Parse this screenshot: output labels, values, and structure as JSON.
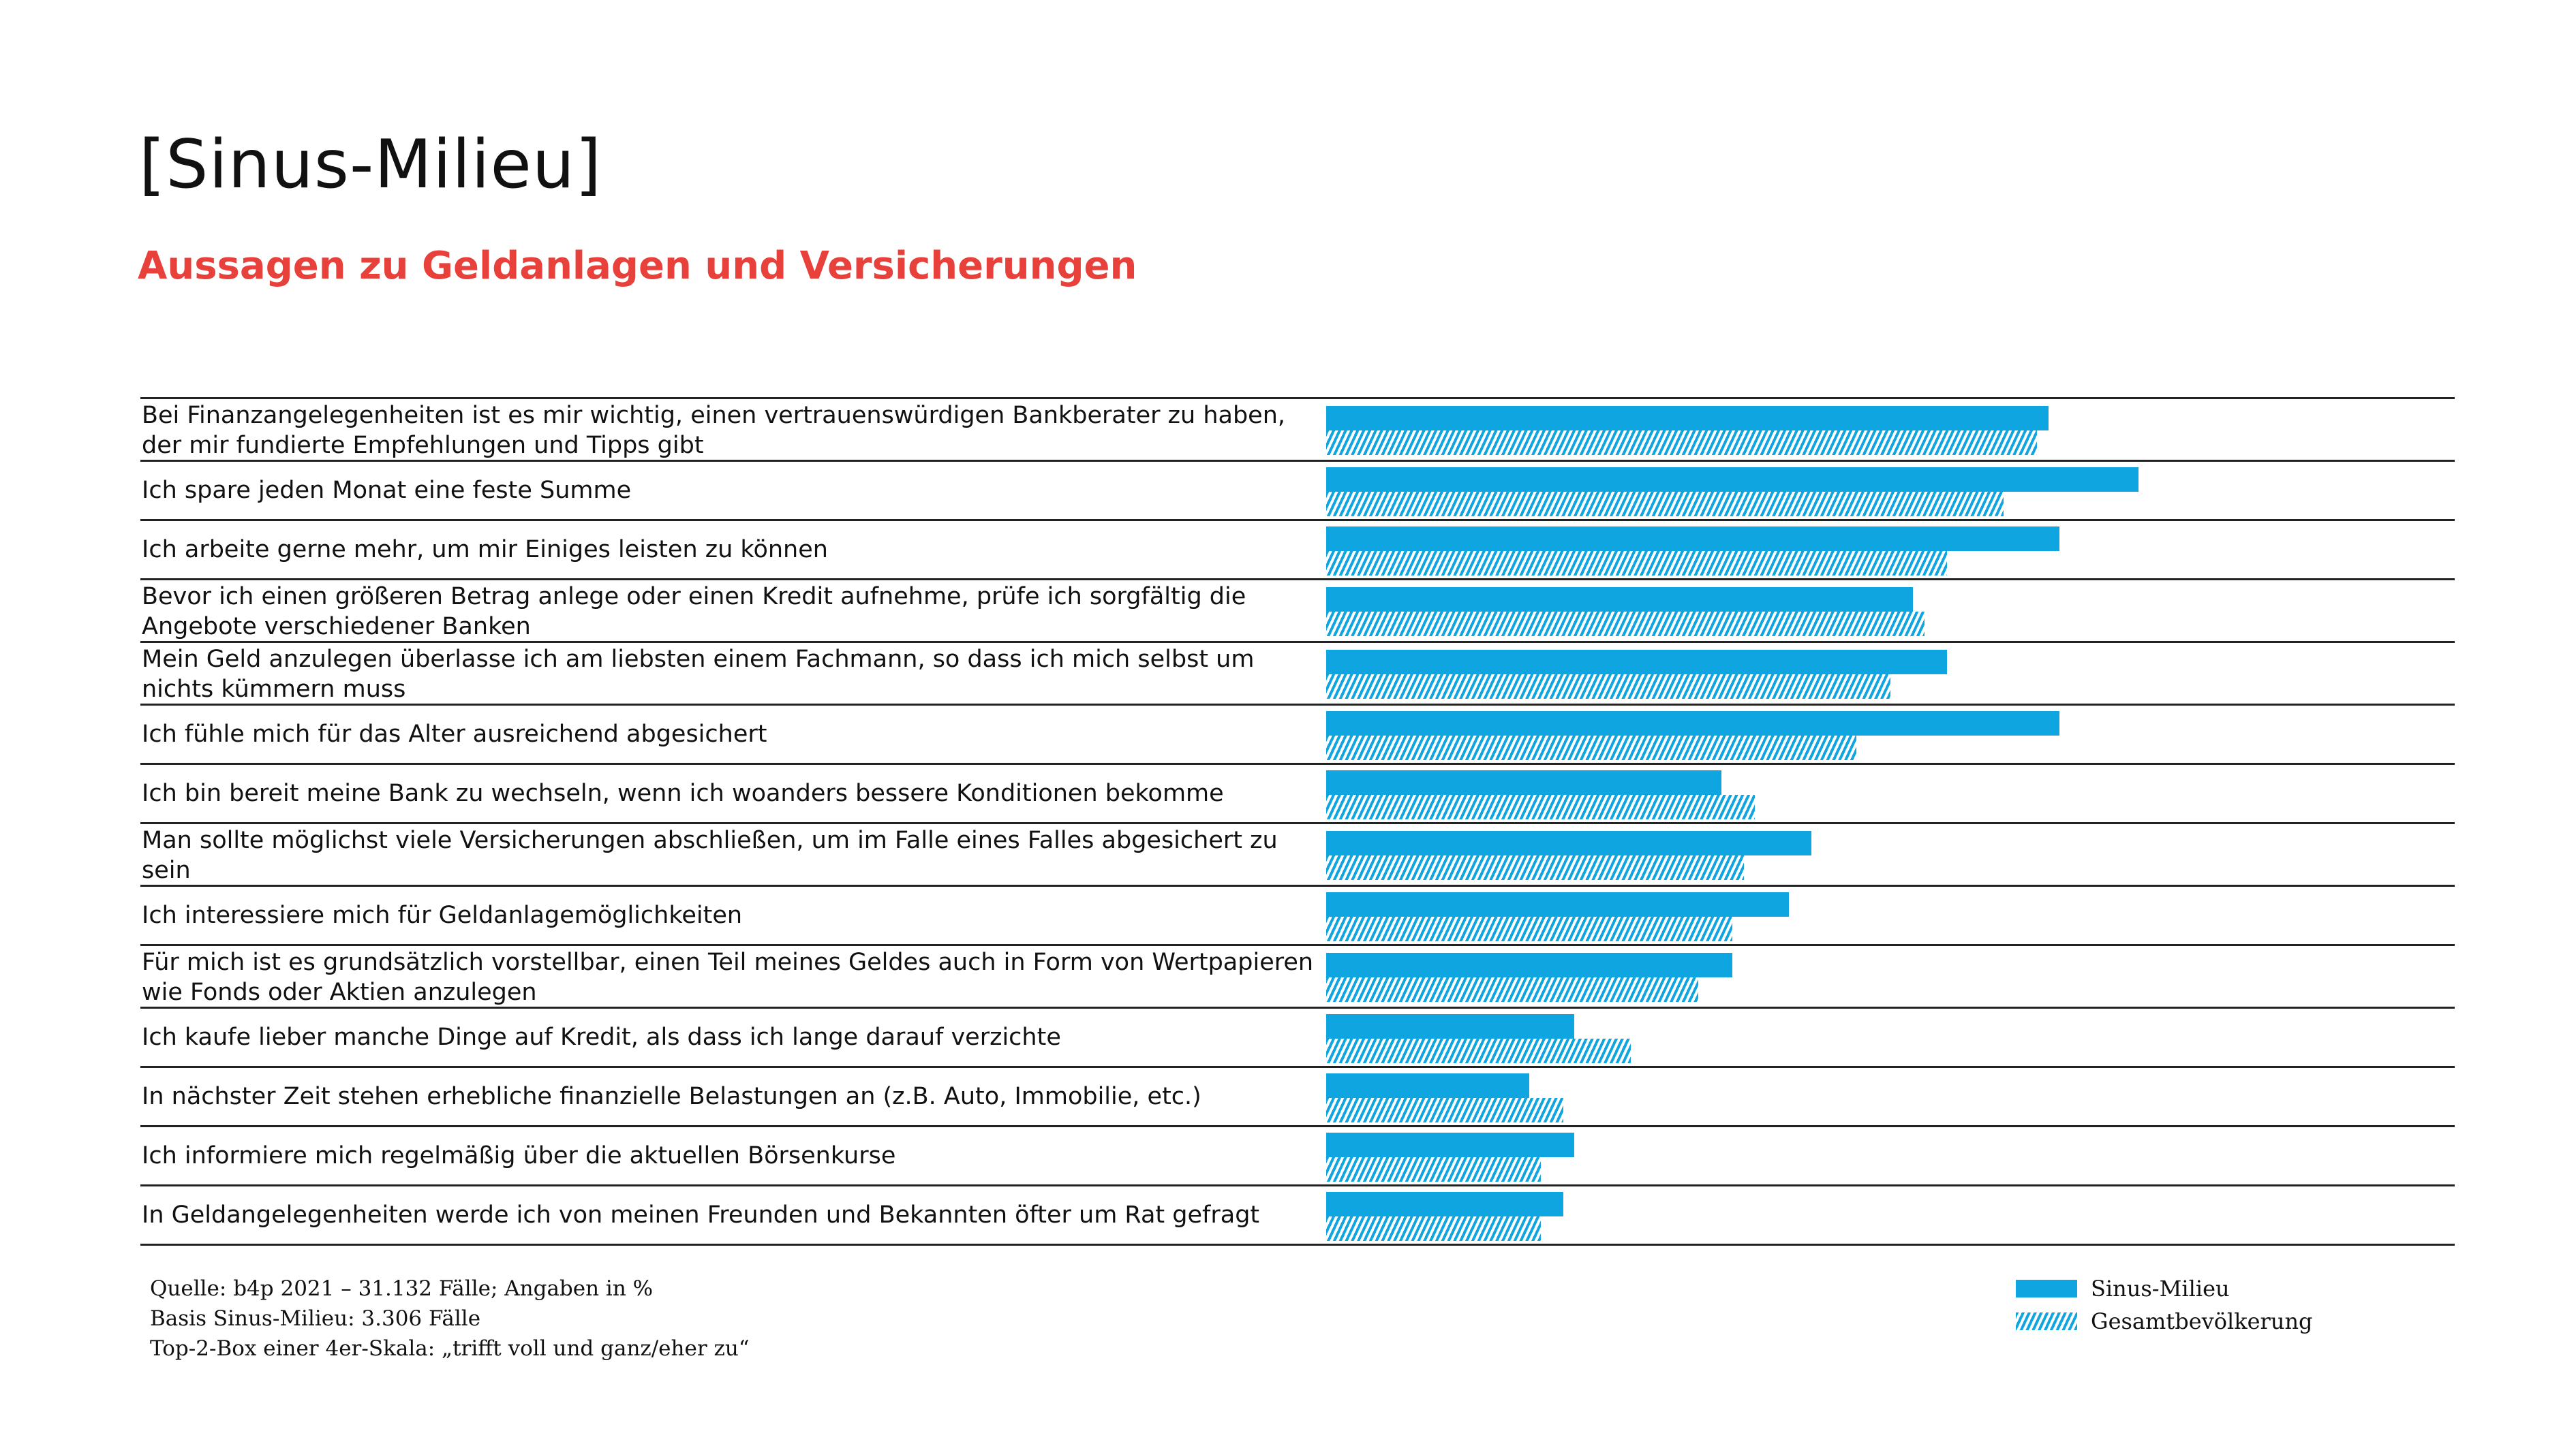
{
  "title": "[Sinus-Milieu]",
  "subtitle": "Aussagen zu Geldanlagen und Versicherungen",
  "colors": {
    "accent": "#0ea5e0",
    "subtitle": "#e8403a"
  },
  "chart_data": {
    "type": "bar",
    "orientation": "horizontal",
    "unit": "%",
    "xlim": [
      0,
      100
    ],
    "categories": [
      "Bei Finanzangelegenheiten ist es mir wichtig, einen vertrauenswürdigen Bankberater zu haben, der mir fundierte Empfehlungen und Tipps gibt",
      "Ich spare jeden Monat eine feste Summe",
      "Ich arbeite gerne mehr, um mir Einiges leisten zu können",
      "Bevor ich einen größeren Betrag anlege oder einen Kredit aufnehme, prüfe ich sorgfältig die Angebote verschiedener Banken",
      "Mein Geld anzulegen überlasse ich am liebsten einem Fachmann, so dass ich mich selbst um nichts kümmern muss",
      "Ich fühle mich für das Alter ausreichend abgesichert",
      "Ich bin bereit meine Bank zu wechseln, wenn ich woanders bessere Konditionen bekomme",
      "Man sollte möglichst viele Versicherungen abschließen, um im Falle eines Falles abgesichert zu sein",
      "Ich interessiere mich für Geldanlagemöglichkeiten",
      "Für mich ist es grundsätzlich vorstellbar, einen Teil meines Geldes auch in Form von Wertpapieren wie Fonds oder Aktien anzulegen",
      "Ich kaufe lieber manche Dinge auf Kredit, als dass ich lange darauf verzichte",
      "In nächster Zeit stehen erhebliche finanzielle Belastungen an (z.B. Auto, Immobilie, etc.)",
      "Ich informiere mich regelmäßig über die aktuellen Börsenkurse",
      "In Geldangelegenheiten werde ich von meinen Freunden und Bekannten öfter um Rat gefragt"
    ],
    "two_line": [
      true,
      false,
      false,
      true,
      true,
      false,
      false,
      true,
      false,
      true,
      false,
      false,
      false,
      false
    ],
    "series": [
      {
        "name": "Sinus-Milieu",
        "style": "solid",
        "values": [
          64,
          72,
          65,
          52,
          55,
          65,
          35,
          43,
          41,
          36,
          22,
          18,
          22,
          21
        ]
      },
      {
        "name": "Gesamtbevölkerung",
        "style": "hatched",
        "values": [
          63,
          60,
          55,
          53,
          50,
          47,
          38,
          37,
          36,
          33,
          27,
          21,
          19,
          19
        ]
      }
    ],
    "legend_position": "bottom-right"
  },
  "footer": [
    "Quelle: b4p 2021 – 31.132 Fälle; Angaben in %",
    "Basis Sinus-Milieu: 3.306 Fälle",
    "Top-2-Box einer 4er-Skala: „trifft voll und ganz/eher zu“"
  ]
}
